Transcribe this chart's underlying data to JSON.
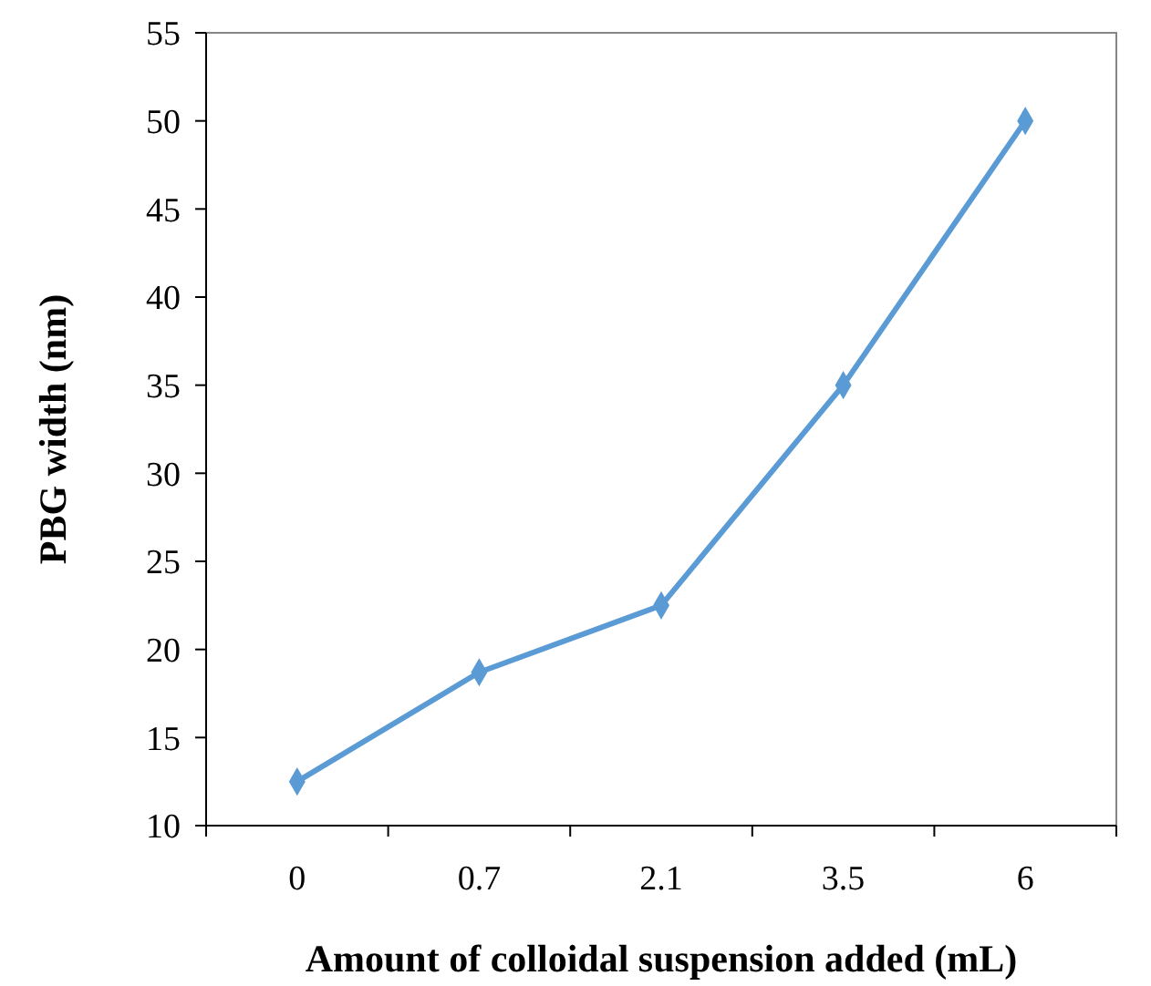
{
  "chart_data": {
    "type": "line",
    "xlabel": "Amount of colloidal suspension added (mL)",
    "ylabel": "PBG width (nm)",
    "categories": [
      "0",
      "0.7",
      "2.1",
      "3.5",
      "6"
    ],
    "series": [
      {
        "color": "#5b9bd5",
        "values": [
          12.5,
          18.7,
          22.5,
          35,
          50
        ]
      }
    ],
    "ylim": [
      10,
      55
    ],
    "yticks": [
      10,
      15,
      20,
      25,
      30,
      35,
      40,
      45,
      50,
      55
    ],
    "grid": false,
    "marker": "diamond",
    "line_style": "solid"
  }
}
